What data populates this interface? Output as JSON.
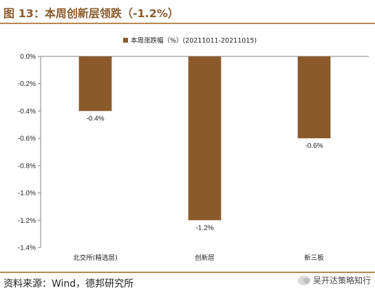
{
  "header": {
    "title": "图 13：本周创新层领跌（-1.2%）"
  },
  "footer": {
    "source": "资料来源：Wind，德邦研究所",
    "watermark_text": "吴开达策略知行",
    "watermark_icon": "wechat-icon"
  },
  "colors": {
    "bar": "#8b5a2b",
    "accent": "#b8864f"
  },
  "chart_data": {
    "type": "bar",
    "title": "",
    "xlabel": "",
    "ylabel": "",
    "categories": [
      "北交所(精选层)",
      "创新层",
      "新三板"
    ],
    "series": [
      {
        "name": "本周涨跌幅（%）(20211011-20211015)",
        "values": [
          -0.4,
          -1.2,
          -0.6
        ],
        "labels": [
          "-0.4%",
          "-1.2%",
          "-0.6%"
        ]
      }
    ],
    "ylim": [
      -1.4,
      0.0
    ],
    "yticks": [
      0.0,
      -0.2,
      -0.4,
      -0.6,
      -0.8,
      -1.0,
      -1.2,
      -1.4
    ],
    "ytick_labels": [
      "0.0%",
      "-0.2%",
      "-0.4%",
      "-0.6%",
      "-0.8%",
      "-1.0%",
      "-1.2%",
      "-1.4%"
    ],
    "grid": false,
    "legend": "top-center"
  }
}
